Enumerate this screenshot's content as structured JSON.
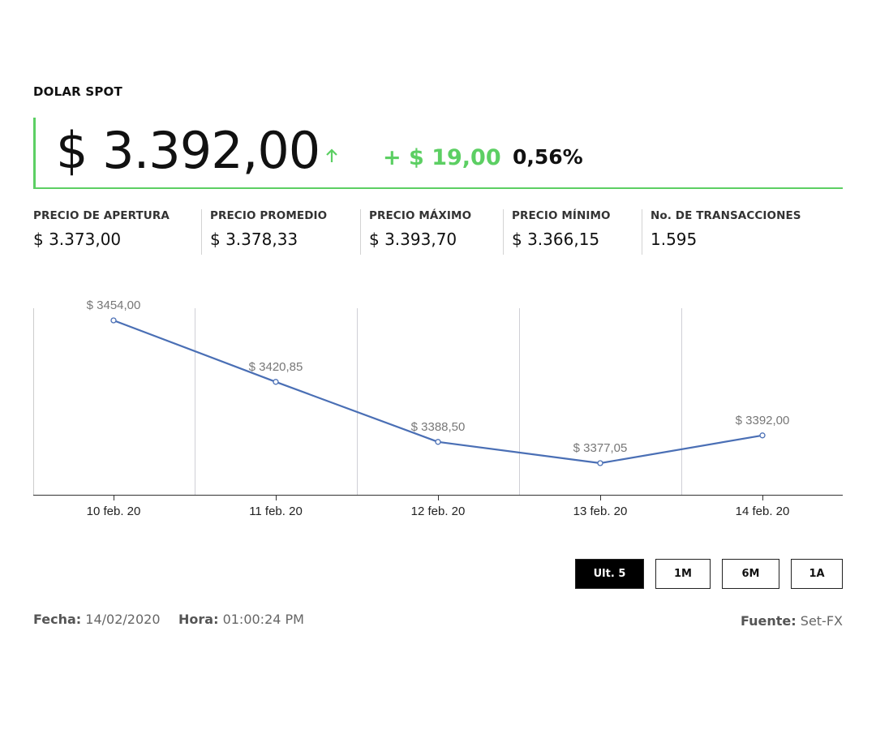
{
  "header": {
    "title": "DOLAR SPOT",
    "price": "$ 3.392,00",
    "change": "+ $ 19,00",
    "percent": "0,56%",
    "colors": {
      "positive": "#5ccf63",
      "line": "#4a6fb5",
      "active_button": "#000000"
    },
    "arrow_icon": "arrow-up-icon"
  },
  "stats": [
    {
      "label": "PRECIO DE APERTURA",
      "value": "$ 3.373,00"
    },
    {
      "label": "PRECIO PROMEDIO",
      "value": "$ 3.378,33"
    },
    {
      "label": "PRECIO MÁXIMO",
      "value": "$ 3.393,70"
    },
    {
      "label": "PRECIO MÍNIMO",
      "value": "$ 3.366,15"
    },
    {
      "label": "No. DE TRANSACCIONES",
      "value": "1.595"
    }
  ],
  "chart_data": {
    "type": "line",
    "categories": [
      "10 feb. 20",
      "11 feb. 20",
      "12 feb. 20",
      "13 feb. 20",
      "14 feb. 20"
    ],
    "series": [
      {
        "name": "Dolar Spot",
        "values": [
          3454.0,
          3420.85,
          3388.5,
          3377.05,
          3392.0
        ],
        "labels": [
          "$ 3454,00",
          "$ 3420,85",
          "$ 3388,50",
          "$ 3377,05",
          "$ 3392,00"
        ]
      }
    ],
    "title": "",
    "xlabel": "",
    "ylabel": "",
    "ylim": [
      3360,
      3460
    ],
    "grid": true
  },
  "range_buttons": [
    {
      "label": "Ult. 5",
      "active": true
    },
    {
      "label": "1M",
      "active": false
    },
    {
      "label": "6M",
      "active": false
    },
    {
      "label": "1A",
      "active": false
    }
  ],
  "footer": {
    "date_label": "Fecha:",
    "date_value": "14/02/2020",
    "time_label": "Hora:",
    "time_value": "01:00:24 PM",
    "source_label": "Fuente:",
    "source_value": "Set-FX"
  }
}
